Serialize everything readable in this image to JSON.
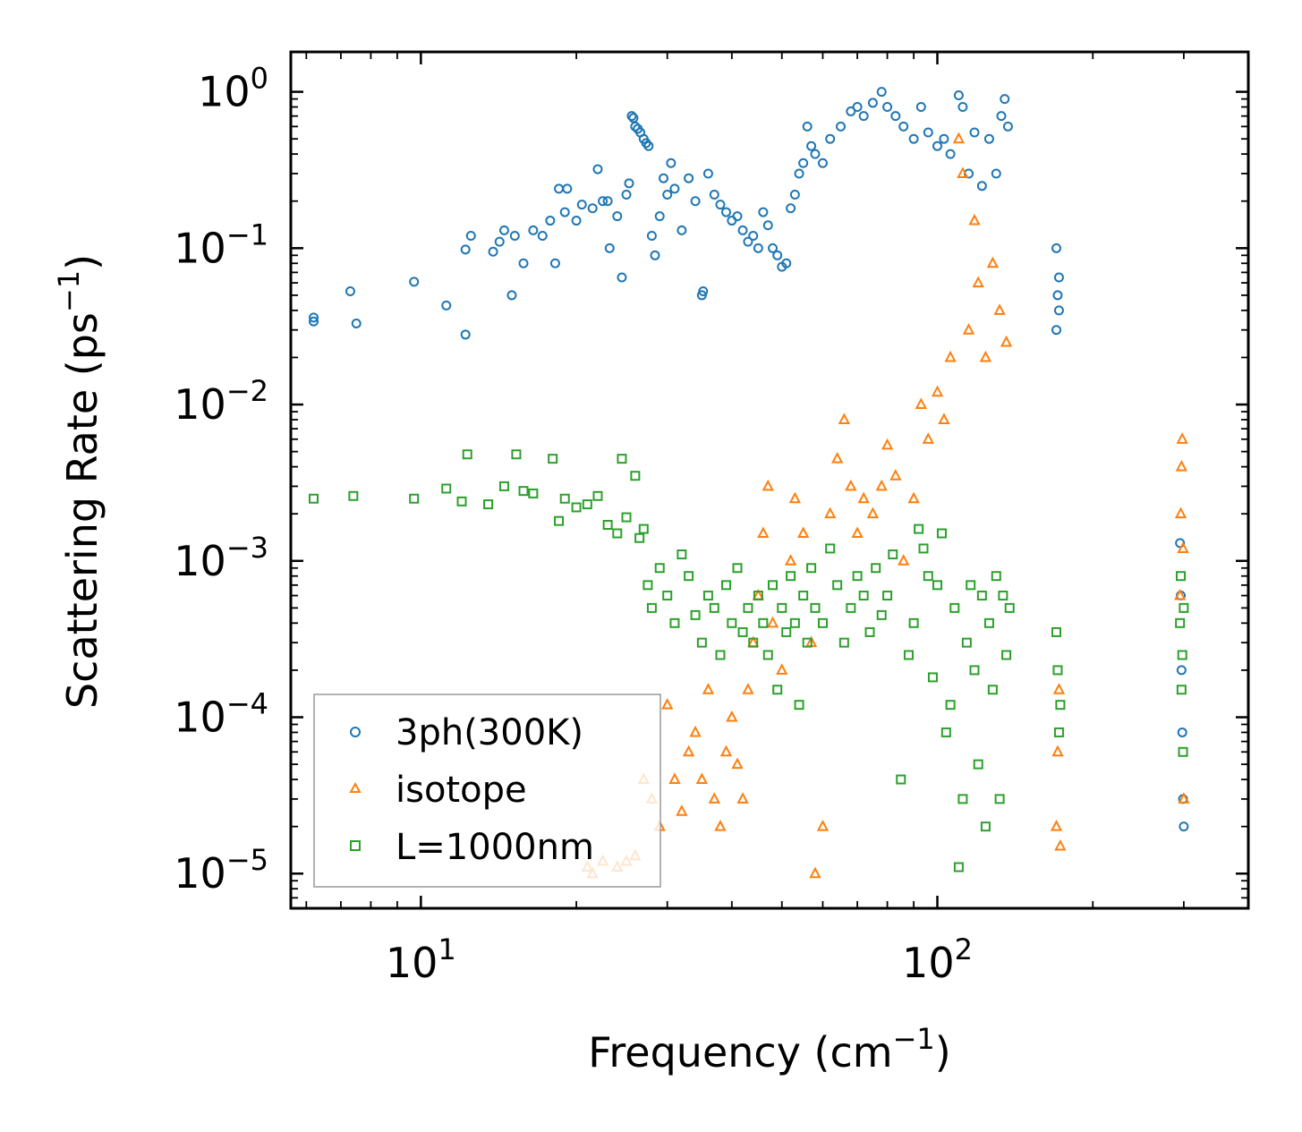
{
  "chart_data": {
    "type": "scatter",
    "x_scale": "log",
    "y_scale": "log",
    "xlim": [
      5.6,
      400
    ],
    "ylim": [
      6e-06,
      1.8
    ],
    "xlabel": "Frequency (cm",
    "xlabel_sup": "−1",
    "xlabel_close": ")",
    "ylabel": "Scattering Rate (ps",
    "ylabel_sup": "−1",
    "ylabel_close": ")",
    "x_ticks": [
      {
        "value": 10,
        "base": "10",
        "exp": "1"
      },
      {
        "value": 100,
        "base": "10",
        "exp": "2"
      }
    ],
    "y_ticks": [
      {
        "value": 1,
        "base": "10",
        "exp": "0"
      },
      {
        "value": 0.1,
        "base": "10",
        "exp": "−1"
      },
      {
        "value": 0.01,
        "base": "10",
        "exp": "−2"
      },
      {
        "value": 0.001,
        "base": "10",
        "exp": "−3"
      },
      {
        "value": 0.0001,
        "base": "10",
        "exp": "−4"
      },
      {
        "value": 1e-05,
        "base": "10",
        "exp": "−5"
      }
    ],
    "legend": {
      "position": "lower-left",
      "entries": [
        "3ph(300K)",
        "isotope",
        "L=1000nm"
      ]
    },
    "series": [
      {
        "name": "3ph(300K)",
        "marker": "circle",
        "color": "#1f77b4",
        "points": [
          [
            6.2,
            0.036
          ],
          [
            6.2,
            0.034
          ],
          [
            7.3,
            0.053
          ],
          [
            7.5,
            0.033
          ],
          [
            9.7,
            0.061
          ],
          [
            11.2,
            0.043
          ],
          [
            12.2,
            0.028
          ],
          [
            12.2,
            0.098
          ],
          [
            12.5,
            0.12
          ],
          [
            13.8,
            0.095
          ],
          [
            14.2,
            0.11
          ],
          [
            14.5,
            0.13
          ],
          [
            15.0,
            0.05
          ],
          [
            15.2,
            0.12
          ],
          [
            15.8,
            0.08
          ],
          [
            16.5,
            0.13
          ],
          [
            17.2,
            0.12
          ],
          [
            17.8,
            0.15
          ],
          [
            18.2,
            0.08
          ],
          [
            18.5,
            0.24
          ],
          [
            19.0,
            0.17
          ],
          [
            19.2,
            0.24
          ],
          [
            20.0,
            0.15
          ],
          [
            20.5,
            0.19
          ],
          [
            21.5,
            0.18
          ],
          [
            22.0,
            0.32
          ],
          [
            22.5,
            0.2
          ],
          [
            23.0,
            0.2
          ],
          [
            23.2,
            0.1
          ],
          [
            24.0,
            0.16
          ],
          [
            24.5,
            0.065
          ],
          [
            25.0,
            0.22
          ],
          [
            25.3,
            0.26
          ],
          [
            25.6,
            0.7
          ],
          [
            25.8,
            0.68
          ],
          [
            26.0,
            0.6
          ],
          [
            26.3,
            0.58
          ],
          [
            26.6,
            0.55
          ],
          [
            27.0,
            0.5
          ],
          [
            27.3,
            0.47
          ],
          [
            27.6,
            0.45
          ],
          [
            28.0,
            0.12
          ],
          [
            28.4,
            0.09
          ],
          [
            29.0,
            0.16
          ],
          [
            29.5,
            0.28
          ],
          [
            30.0,
            0.22
          ],
          [
            30.5,
            0.35
          ],
          [
            31.0,
            0.24
          ],
          [
            32.0,
            0.13
          ],
          [
            33.0,
            0.28
          ],
          [
            34.0,
            0.2
          ],
          [
            35.0,
            0.05
          ],
          [
            35.2,
            0.053
          ],
          [
            36.0,
            0.3
          ],
          [
            37.0,
            0.22
          ],
          [
            38.0,
            0.19
          ],
          [
            39.0,
            0.17
          ],
          [
            40.0,
            0.15
          ],
          [
            41.0,
            0.16
          ],
          [
            42.0,
            0.13
          ],
          [
            43.0,
            0.11
          ],
          [
            44.0,
            0.12
          ],
          [
            45.0,
            0.1
          ],
          [
            46.0,
            0.17
          ],
          [
            47.0,
            0.14
          ],
          [
            48.0,
            0.1
          ],
          [
            49.0,
            0.09
          ],
          [
            50.0,
            0.076
          ],
          [
            51.0,
            0.08
          ],
          [
            52.0,
            0.18
          ],
          [
            53.0,
            0.22
          ],
          [
            54.0,
            0.3
          ],
          [
            55.0,
            0.35
          ],
          [
            56.0,
            0.6
          ],
          [
            57.0,
            0.45
          ],
          [
            58.0,
            0.4
          ],
          [
            60.0,
            0.35
          ],
          [
            62.0,
            0.5
          ],
          [
            65.0,
            0.6
          ],
          [
            68.0,
            0.75
          ],
          [
            70.0,
            0.8
          ],
          [
            72.0,
            0.7
          ],
          [
            75.0,
            0.85
          ],
          [
            78.0,
            1.0
          ],
          [
            80.0,
            0.8
          ],
          [
            83.0,
            0.7
          ],
          [
            86.0,
            0.6
          ],
          [
            90.0,
            0.5
          ],
          [
            93.0,
            0.8
          ],
          [
            96.0,
            0.55
          ],
          [
            100.0,
            0.45
          ],
          [
            103.0,
            0.5
          ],
          [
            106.0,
            0.4
          ],
          [
            110.0,
            0.95
          ],
          [
            112.0,
            0.8
          ],
          [
            115.0,
            0.3
          ],
          [
            118.0,
            0.55
          ],
          [
            122.0,
            0.25
          ],
          [
            126.0,
            0.5
          ],
          [
            130.0,
            0.3
          ],
          [
            133.0,
            0.7
          ],
          [
            135.0,
            0.9
          ],
          [
            137.0,
            0.6
          ],
          [
            170.0,
            0.1
          ],
          [
            170.0,
            0.03
          ],
          [
            171.0,
            0.05
          ],
          [
            172.0,
            0.065
          ],
          [
            172.0,
            0.04
          ],
          [
            295.0,
            0.0013
          ],
          [
            296.0,
            0.0006
          ],
          [
            297.0,
            0.0002
          ],
          [
            298.0,
            8e-05
          ],
          [
            299.0,
            3e-05
          ],
          [
            300.0,
            2e-05
          ]
        ]
      },
      {
        "name": "isotope",
        "marker": "triangle",
        "color": "#ff7f0e",
        "points": [
          [
            21.0,
            1.1e-05
          ],
          [
            21.5,
            1e-05
          ],
          [
            22.5,
            1.2e-05
          ],
          [
            24.0,
            1.1e-05
          ],
          [
            25.0,
            1.2e-05
          ],
          [
            26.0,
            1.3e-05
          ],
          [
            27.0,
            4e-05
          ],
          [
            28.0,
            3e-05
          ],
          [
            29.0,
            2e-05
          ],
          [
            30.0,
            0.00012
          ],
          [
            31.0,
            4e-05
          ],
          [
            32.0,
            2.5e-05
          ],
          [
            33.0,
            6e-05
          ],
          [
            34.0,
            8e-05
          ],
          [
            35.0,
            4e-05
          ],
          [
            36.0,
            0.00015
          ],
          [
            37.0,
            3e-05
          ],
          [
            38.0,
            2e-05
          ],
          [
            39.0,
            6e-05
          ],
          [
            40.0,
            0.0001
          ],
          [
            41.0,
            5e-05
          ],
          [
            42.0,
            3e-05
          ],
          [
            43.0,
            0.00015
          ],
          [
            44.0,
            0.0003
          ],
          [
            45.0,
            0.0006
          ],
          [
            46.0,
            0.0015
          ],
          [
            47.0,
            0.003
          ],
          [
            48.0,
            0.0004
          ],
          [
            50.0,
            0.0002
          ],
          [
            52.0,
            0.001
          ],
          [
            53.0,
            0.0025
          ],
          [
            55.0,
            0.0015
          ],
          [
            57.0,
            0.0003
          ],
          [
            58.0,
            1e-05
          ],
          [
            60.0,
            2e-05
          ],
          [
            62.0,
            0.002
          ],
          [
            64.0,
            0.0045
          ],
          [
            66.0,
            0.008
          ],
          [
            68.0,
            0.003
          ],
          [
            70.0,
            0.0015
          ],
          [
            72.0,
            0.0025
          ],
          [
            75.0,
            0.002
          ],
          [
            78.0,
            0.003
          ],
          [
            80.0,
            0.0055
          ],
          [
            83.0,
            0.0035
          ],
          [
            86.0,
            0.001
          ],
          [
            90.0,
            0.0025
          ],
          [
            93.0,
            0.01
          ],
          [
            96.0,
            0.006
          ],
          [
            100.0,
            0.012
          ],
          [
            103.0,
            0.008
          ],
          [
            106.0,
            0.02
          ],
          [
            110.0,
            0.5
          ],
          [
            112.0,
            0.3
          ],
          [
            115.0,
            0.03
          ],
          [
            118.0,
            0.15
          ],
          [
            120.0,
            0.06
          ],
          [
            124.0,
            0.02
          ],
          [
            128.0,
            0.08
          ],
          [
            132.0,
            0.04
          ],
          [
            136.0,
            0.025
          ],
          [
            170.0,
            2e-05
          ],
          [
            171.0,
            6e-05
          ],
          [
            172.0,
            0.00015
          ],
          [
            173.0,
            1.5e-05
          ],
          [
            295.0,
            0.0006
          ],
          [
            296.0,
            0.002
          ],
          [
            297.0,
            0.004
          ],
          [
            298.0,
            0.006
          ],
          [
            299.0,
            0.0012
          ],
          [
            300.0,
            3e-05
          ]
        ]
      },
      {
        "name": "L=1000nm",
        "marker": "square",
        "color": "#2ca02c",
        "points": [
          [
            6.2,
            0.0025
          ],
          [
            7.4,
            0.0026
          ],
          [
            9.7,
            0.0025
          ],
          [
            11.2,
            0.0029
          ],
          [
            12.0,
            0.0024
          ],
          [
            12.3,
            0.0048
          ],
          [
            13.5,
            0.0023
          ],
          [
            14.5,
            0.003
          ],
          [
            15.3,
            0.0048
          ],
          [
            15.8,
            0.0028
          ],
          [
            16.5,
            0.0027
          ],
          [
            18.0,
            0.0045
          ],
          [
            18.5,
            0.0018
          ],
          [
            19.0,
            0.0025
          ],
          [
            20.0,
            0.0022
          ],
          [
            21.0,
            0.0023
          ],
          [
            22.0,
            0.0026
          ],
          [
            23.0,
            0.0017
          ],
          [
            24.0,
            0.0015
          ],
          [
            24.5,
            0.0045
          ],
          [
            25.0,
            0.0019
          ],
          [
            26.0,
            0.0035
          ],
          [
            26.5,
            0.0014
          ],
          [
            27.0,
            0.0016
          ],
          [
            27.5,
            0.0007
          ],
          [
            28.0,
            0.0005
          ],
          [
            29.0,
            0.0009
          ],
          [
            30.0,
            0.0006
          ],
          [
            31.0,
            0.0004
          ],
          [
            32.0,
            0.0011
          ],
          [
            33.0,
            0.0008
          ],
          [
            34.0,
            0.00045
          ],
          [
            35.0,
            0.0003
          ],
          [
            36.0,
            0.0006
          ],
          [
            37.0,
            0.0005
          ],
          [
            38.0,
            0.00025
          ],
          [
            39.0,
            0.0007
          ],
          [
            40.0,
            0.0004
          ],
          [
            41.0,
            0.0009
          ],
          [
            42.0,
            0.00035
          ],
          [
            43.0,
            0.0005
          ],
          [
            44.0,
            0.0003
          ],
          [
            45.0,
            0.0006
          ],
          [
            46.0,
            0.0004
          ],
          [
            47.0,
            0.00025
          ],
          [
            48.0,
            0.0007
          ],
          [
            49.0,
            0.00015
          ],
          [
            50.0,
            0.0005
          ],
          [
            51.0,
            0.00035
          ],
          [
            52.0,
            0.0008
          ],
          [
            53.0,
            0.0004
          ],
          [
            54.0,
            0.00012
          ],
          [
            55.0,
            0.0006
          ],
          [
            56.0,
            0.0003
          ],
          [
            57.0,
            0.0009
          ],
          [
            58.0,
            0.0005
          ],
          [
            60.0,
            0.0004
          ],
          [
            62.0,
            0.0012
          ],
          [
            64.0,
            0.0007
          ],
          [
            66.0,
            0.0003
          ],
          [
            68.0,
            0.0005
          ],
          [
            70.0,
            0.0008
          ],
          [
            72.0,
            0.0006
          ],
          [
            74.0,
            0.00035
          ],
          [
            76.0,
            0.0009
          ],
          [
            78.0,
            0.00045
          ],
          [
            80.0,
            0.0006
          ],
          [
            82.0,
            0.0011
          ],
          [
            85.0,
            4e-05
          ],
          [
            88.0,
            0.00025
          ],
          [
            90.0,
            0.0004
          ],
          [
            92.0,
            0.0016
          ],
          [
            94.0,
            0.0012
          ],
          [
            96.0,
            0.0008
          ],
          [
            98.0,
            0.00018
          ],
          [
            100.0,
            0.0007
          ],
          [
            102.0,
            0.0015
          ],
          [
            104.0,
            8e-05
          ],
          [
            106.0,
            0.00012
          ],
          [
            108.0,
            0.0005
          ],
          [
            110.0,
            1.1e-05
          ],
          [
            112.0,
            3e-05
          ],
          [
            114.0,
            0.0003
          ],
          [
            116.0,
            0.0007
          ],
          [
            118.0,
            0.0002
          ],
          [
            120.0,
            5e-05
          ],
          [
            122.0,
            0.0006
          ],
          [
            124.0,
            2e-05
          ],
          [
            126.0,
            0.0004
          ],
          [
            128.0,
            0.00015
          ],
          [
            130.0,
            0.0008
          ],
          [
            132.0,
            3e-05
          ],
          [
            134.0,
            0.0006
          ],
          [
            136.0,
            0.00025
          ],
          [
            138.0,
            0.0005
          ],
          [
            170.0,
            0.00035
          ],
          [
            171.0,
            0.0002
          ],
          [
            172.0,
            8e-05
          ],
          [
            173.0,
            0.00012
          ],
          [
            295.0,
            0.0004
          ],
          [
            296.0,
            0.0008
          ],
          [
            297.0,
            0.00015
          ],
          [
            298.0,
            0.00025
          ],
          [
            299.0,
            6e-05
          ],
          [
            300.0,
            0.0005
          ]
        ]
      }
    ]
  }
}
